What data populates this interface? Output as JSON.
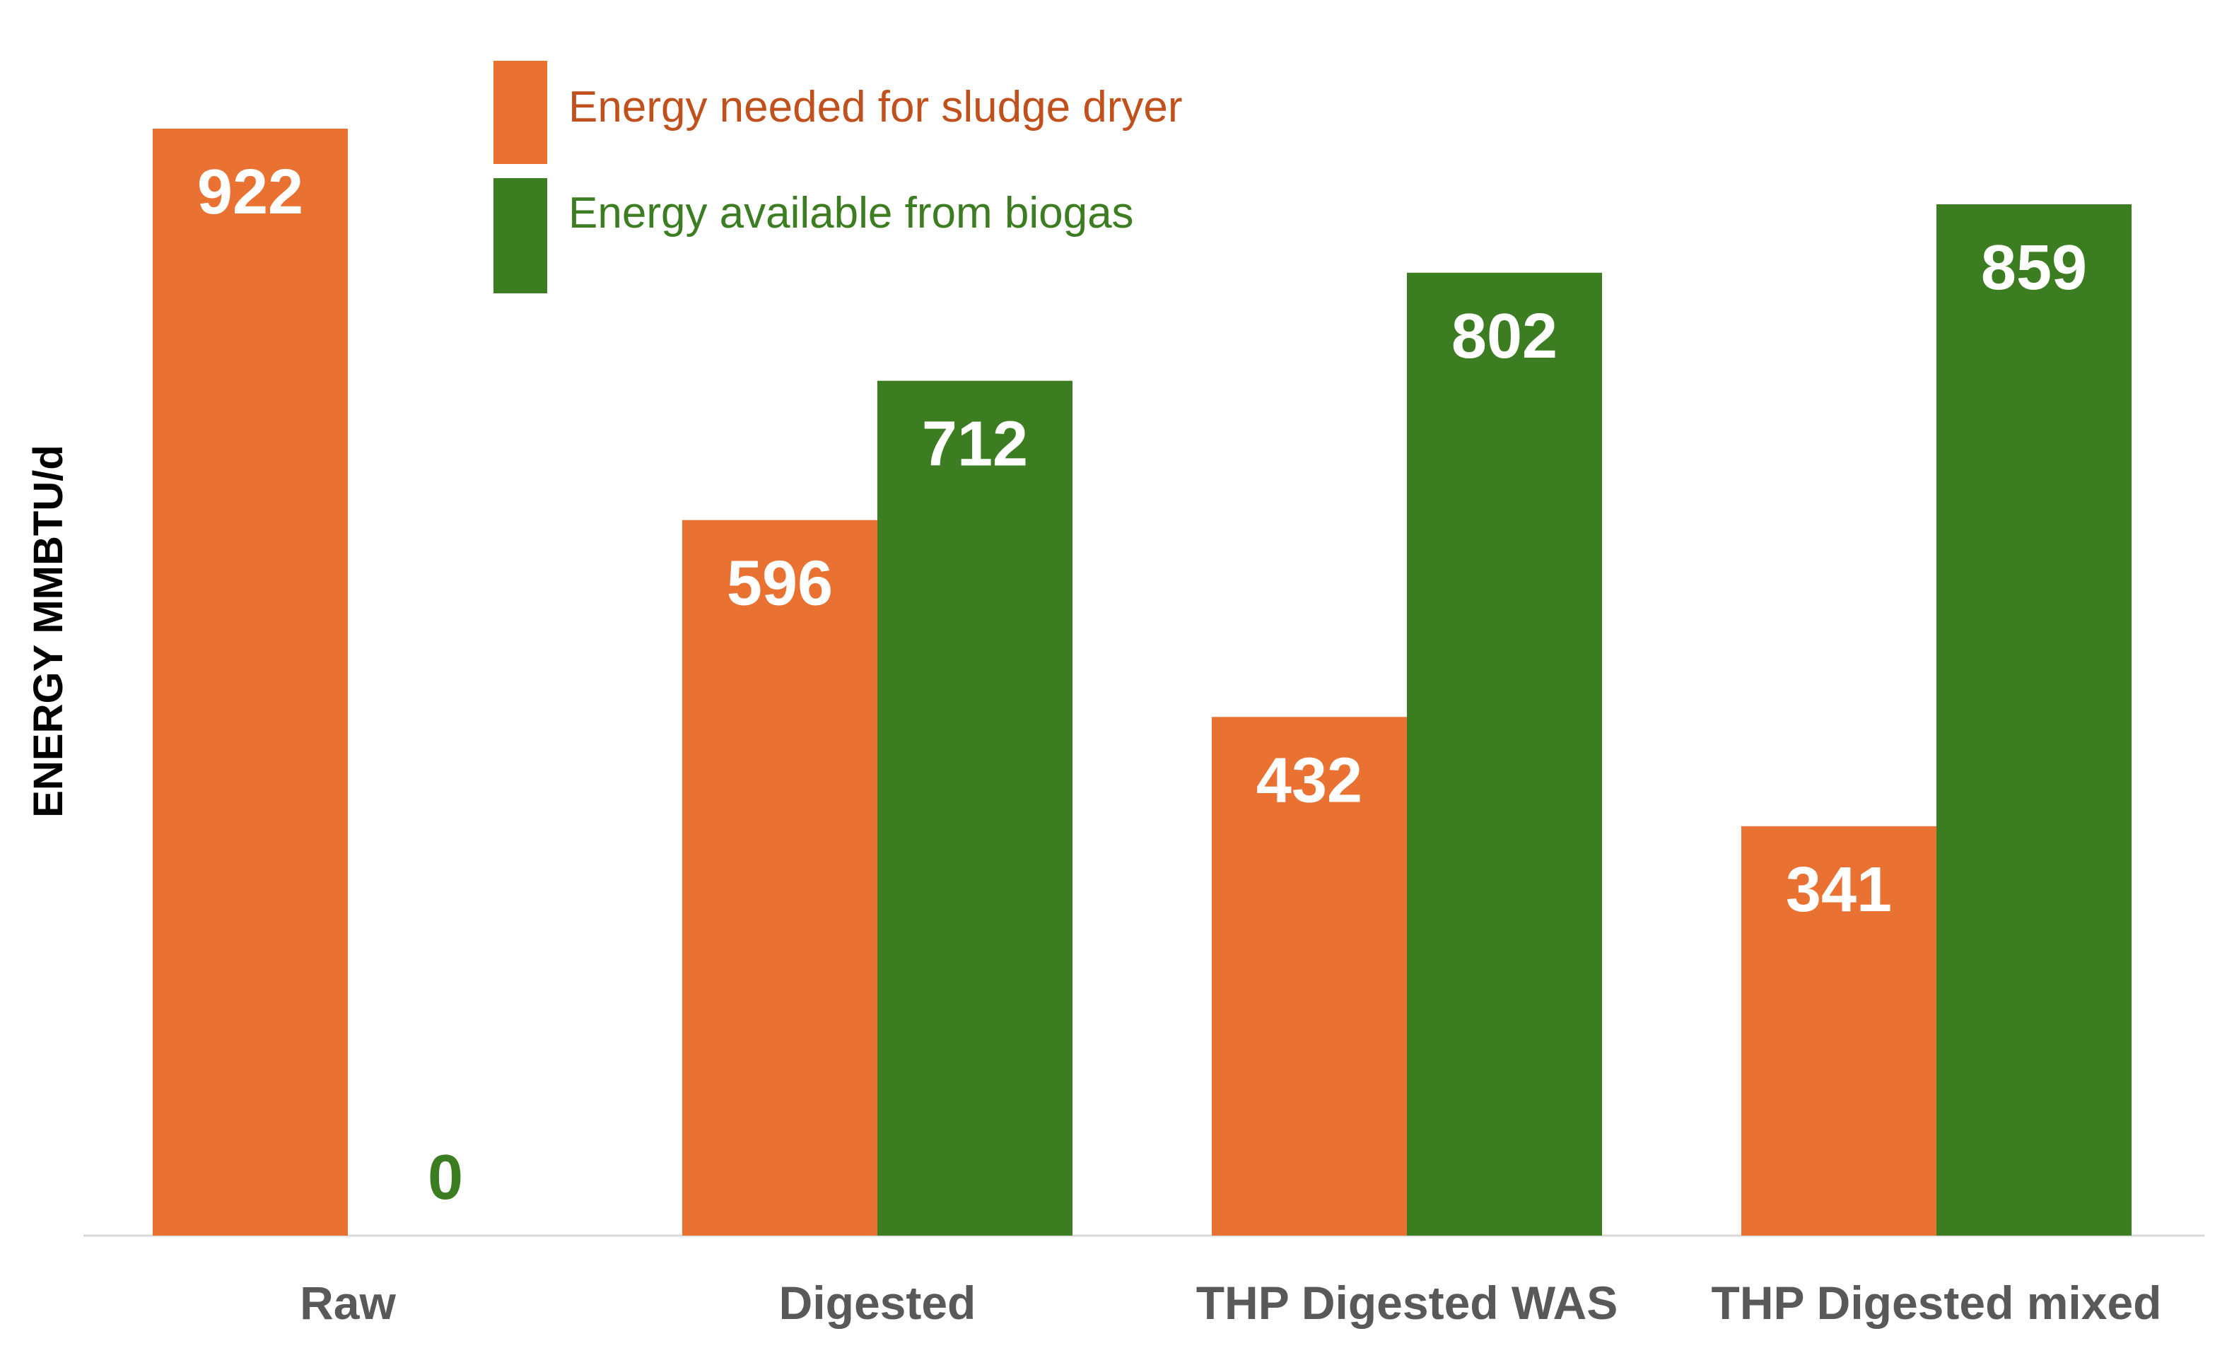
{
  "chart_data": {
    "type": "bar",
    "title": "",
    "xlabel": "",
    "ylabel": "ENERGY MMBTU/d",
    "categories": [
      "Raw",
      "Digested",
      "THP Digested WAS",
      "THP Digested mixed"
    ],
    "series": [
      {
        "name": "Energy needed for sludge dryer",
        "color": "#E97132",
        "values": [
          922,
          596,
          432,
          341
        ],
        "labels": [
          "922",
          "596",
          "432",
          "341"
        ]
      },
      {
        "name": "Energy available from biogas",
        "color": "#3C7D22",
        "values": [
          0,
          712,
          802,
          859
        ],
        "labels": [
          "0",
          "712",
          "802",
          "859"
        ]
      }
    ],
    "legend_text_colors": [
      "#C0501C",
      "#3C7D22"
    ],
    "ylim": [
      0,
      922
    ],
    "grid": false,
    "legend": "top-left",
    "axis_color": "#D9D9D9"
  }
}
